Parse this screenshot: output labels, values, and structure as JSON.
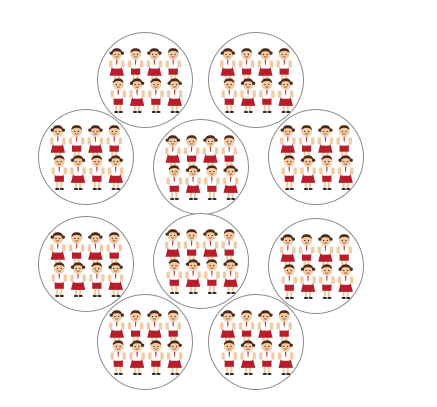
{
  "colors": {
    "circle_border": "#8c8c8c",
    "hair": "#4a2a1a",
    "skin": "#f4c9a0",
    "shirt": "#ffffff",
    "skirt": "#b81e2a",
    "tie": "#c0392b",
    "shoe": "#2b2b2b"
  },
  "groups": [
    {
      "name": "group-1",
      "children": 8
    },
    {
      "name": "group-2",
      "children": 8
    },
    {
      "name": "group-3",
      "children": 8
    },
    {
      "name": "group-4",
      "children": 8
    },
    {
      "name": "group-5",
      "children": 8
    },
    {
      "name": "group-6",
      "children": 8
    },
    {
      "name": "group-7",
      "children": 8
    },
    {
      "name": "group-8",
      "children": 8
    },
    {
      "name": "group-9",
      "children": 8
    },
    {
      "name": "group-10",
      "children": 8
    }
  ]
}
